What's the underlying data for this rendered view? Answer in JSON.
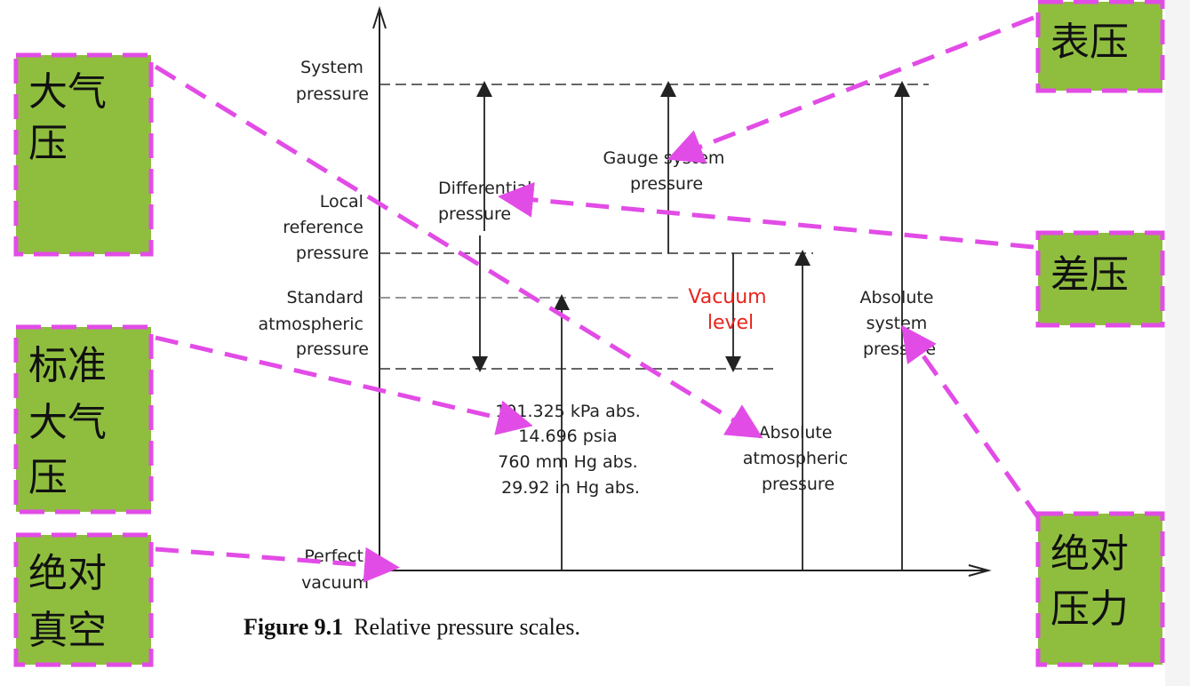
{
  "diagram": {
    "left_labels": {
      "system": [
        "System",
        "pressure"
      ],
      "local": [
        "Local",
        "reference",
        "pressure"
      ],
      "standard": [
        "Standard",
        "atmospheric",
        "pressure"
      ],
      "perfect": [
        "Perfect",
        "vacuum"
      ]
    },
    "differential": [
      "Differential",
      "pressure"
    ],
    "gauge": [
      "Gauge system",
      "pressure"
    ],
    "vacuum": [
      "Vacuum",
      "level"
    ],
    "absolute_system": [
      "Absolute",
      "system",
      "pressure"
    ],
    "standard_values": [
      "101.325 kPa abs.",
      "14.696 psia",
      "760 mm Hg abs.",
      "29.92 in Hg abs."
    ],
    "absolute_atmospheric": [
      "Absolute",
      "atmospheric",
      "pressure"
    ],
    "caption_bold": "Figure 9.1",
    "caption_text": "Relative pressure scales.",
    "colors": {
      "vacuum_text": "#e8251d",
      "line": "#222222"
    }
  },
  "annotations": {
    "atmospheric": [
      "大气",
      "压"
    ],
    "gauge": [
      "表压"
    ],
    "differential": [
      "差压"
    ],
    "standard": [
      "标准",
      "大气",
      "压"
    ],
    "absolute": [
      "绝对",
      "压力"
    ],
    "vacuum": [
      "绝对",
      "真空"
    ],
    "colors": {
      "box_fill": "#8fbe3f",
      "border": "#e24ce6",
      "arrow": "#e24ce6"
    }
  }
}
